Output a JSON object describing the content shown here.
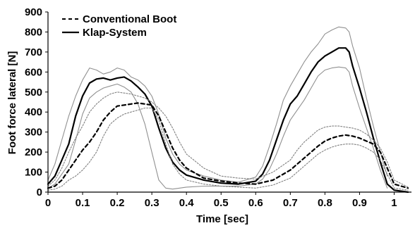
{
  "chart_data": {
    "type": "line",
    "xlabel": "Time [sec]",
    "ylabel": "Foot force lateral [N]",
    "xlim": [
      0,
      1.05
    ],
    "ylim": [
      0,
      900
    ],
    "xticks": [
      "0",
      "0.1",
      "0.2",
      "0.3",
      "0.4",
      "0.5",
      "0.6",
      "0.7",
      "0.8",
      "0.9",
      "1"
    ],
    "yticks": [
      "0",
      "100",
      "200",
      "300",
      "400",
      "500",
      "600",
      "700",
      "800",
      "900"
    ],
    "legend": {
      "position": "top-left",
      "entries": [
        "Conventional Boot",
        "Klap-System"
      ]
    },
    "series": [
      {
        "name": "Klap-System",
        "style": "solid-bold",
        "color": "#000000",
        "x": [
          0,
          0.02,
          0.04,
          0.06,
          0.08,
          0.1,
          0.12,
          0.14,
          0.16,
          0.18,
          0.2,
          0.22,
          0.24,
          0.26,
          0.28,
          0.3,
          0.32,
          0.34,
          0.36,
          0.38,
          0.4,
          0.45,
          0.5,
          0.55,
          0.6,
          0.62,
          0.64,
          0.66,
          0.68,
          0.7,
          0.72,
          0.74,
          0.76,
          0.78,
          0.8,
          0.82,
          0.84,
          0.86,
          0.87,
          0.88,
          0.9,
          0.92,
          0.94,
          0.96,
          0.98,
          1.0,
          1.04
        ],
        "y": [
          40,
          80,
          160,
          240,
          380,
          480,
          545,
          565,
          570,
          560,
          570,
          575,
          555,
          525,
          490,
          430,
          320,
          220,
          150,
          110,
          85,
          60,
          45,
          40,
          55,
          90,
          160,
          260,
          360,
          440,
          480,
          540,
          600,
          650,
          680,
          700,
          720,
          720,
          700,
          630,
          520,
          400,
          270,
          150,
          40,
          10,
          0
        ]
      },
      {
        "name": "",
        "style": "solid-thin-upper",
        "color": "#909090",
        "x": [
          0,
          0.02,
          0.04,
          0.06,
          0.08,
          0.1,
          0.12,
          0.14,
          0.16,
          0.18,
          0.2,
          0.22,
          0.24,
          0.26,
          0.28,
          0.3,
          0.32,
          0.34,
          0.36,
          0.38,
          0.4,
          0.45,
          0.5,
          0.55,
          0.6,
          0.62,
          0.64,
          0.66,
          0.68,
          0.7,
          0.72,
          0.74,
          0.76,
          0.78,
          0.8,
          0.82,
          0.84,
          0.86,
          0.87,
          0.88,
          0.9,
          0.92,
          0.94,
          0.96,
          0.98
        ],
        "y": [
          60,
          140,
          260,
          380,
          480,
          560,
          620,
          610,
          590,
          600,
          620,
          610,
          575,
          560,
          530,
          480,
          390,
          270,
          190,
          140,
          110,
          80,
          60,
          50,
          75,
          130,
          230,
          340,
          460,
          530,
          590,
          650,
          700,
          740,
          790,
          810,
          825,
          820,
          800,
          730,
          620,
          470,
          330,
          200,
          80
        ]
      },
      {
        "name": "",
        "style": "solid-thin-lower",
        "color": "#909090",
        "x": [
          0,
          0.02,
          0.04,
          0.06,
          0.08,
          0.1,
          0.12,
          0.14,
          0.16,
          0.18,
          0.2,
          0.22,
          0.24,
          0.26,
          0.28,
          0.3,
          0.32,
          0.34,
          0.36,
          0.38,
          0.4,
          0.45,
          0.5,
          0.55,
          0.6,
          0.62,
          0.64,
          0.66,
          0.68,
          0.7,
          0.72,
          0.74,
          0.76,
          0.78,
          0.8,
          0.82,
          0.84,
          0.86,
          0.87,
          0.88,
          0.9,
          0.92,
          0.94,
          0.96,
          0.98
        ],
        "y": [
          20,
          40,
          90,
          140,
          260,
          390,
          470,
          500,
          520,
          530,
          540,
          525,
          500,
          440,
          340,
          200,
          60,
          20,
          15,
          20,
          25,
          30,
          30,
          30,
          40,
          65,
          115,
          190,
          280,
          360,
          410,
          460,
          520,
          580,
          610,
          620,
          625,
          620,
          600,
          530,
          420,
          320,
          220,
          110,
          20
        ]
      },
      {
        "name": "Conventional Boot",
        "style": "dashed-bold",
        "color": "#000000",
        "x": [
          0,
          0.02,
          0.04,
          0.06,
          0.08,
          0.1,
          0.12,
          0.14,
          0.16,
          0.18,
          0.2,
          0.22,
          0.24,
          0.26,
          0.28,
          0.3,
          0.32,
          0.34,
          0.36,
          0.38,
          0.4,
          0.45,
          0.5,
          0.55,
          0.6,
          0.65,
          0.7,
          0.72,
          0.74,
          0.76,
          0.78,
          0.8,
          0.82,
          0.84,
          0.86,
          0.88,
          0.9,
          0.92,
          0.94,
          0.96,
          0.98,
          1.0,
          1.04
        ],
        "y": [
          20,
          30,
          60,
          110,
          160,
          210,
          250,
          300,
          360,
          400,
          430,
          435,
          440,
          445,
          440,
          435,
          380,
          300,
          220,
          160,
          120,
          70,
          55,
          45,
          40,
          60,
          110,
          140,
          170,
          200,
          230,
          255,
          270,
          280,
          285,
          280,
          270,
          255,
          240,
          200,
          120,
          40,
          20
        ]
      },
      {
        "name": "",
        "style": "dotted-upper",
        "color": "#808080",
        "x": [
          0,
          0.02,
          0.04,
          0.06,
          0.08,
          0.1,
          0.12,
          0.14,
          0.16,
          0.18,
          0.2,
          0.22,
          0.24,
          0.26,
          0.28,
          0.3,
          0.32,
          0.34,
          0.36,
          0.38,
          0.4,
          0.45,
          0.5,
          0.55,
          0.6,
          0.65,
          0.7,
          0.72,
          0.74,
          0.76,
          0.78,
          0.8,
          0.82,
          0.84,
          0.86,
          0.88,
          0.9,
          0.92,
          0.94,
          0.96,
          0.98,
          1.0,
          1.04
        ],
        "y": [
          30,
          60,
          120,
          200,
          270,
          330,
          400,
          440,
          470,
          490,
          500,
          495,
          490,
          480,
          470,
          450,
          420,
          380,
          320,
          250,
          190,
          120,
          80,
          70,
          65,
          100,
          160,
          210,
          250,
          280,
          310,
          325,
          330,
          330,
          325,
          320,
          310,
          290,
          260,
          220,
          150,
          60,
          25
        ]
      },
      {
        "name": "",
        "style": "dotted-lower",
        "color": "#808080",
        "x": [
          0,
          0.02,
          0.04,
          0.06,
          0.08,
          0.1,
          0.12,
          0.14,
          0.16,
          0.18,
          0.2,
          0.22,
          0.24,
          0.26,
          0.28,
          0.3,
          0.32,
          0.34,
          0.36,
          0.38,
          0.4,
          0.45,
          0.5,
          0.55,
          0.6,
          0.65,
          0.7,
          0.72,
          0.74,
          0.76,
          0.78,
          0.8,
          0.82,
          0.84,
          0.86,
          0.88,
          0.9,
          0.92,
          0.94,
          0.96,
          0.98,
          1.0,
          1.04
        ],
        "y": [
          10,
          15,
          30,
          60,
          80,
          110,
          150,
          200,
          280,
          340,
          370,
          390,
          400,
          410,
          420,
          420,
          360,
          240,
          140,
          90,
          60,
          40,
          30,
          25,
          20,
          35,
          70,
          100,
          130,
          160,
          190,
          210,
          225,
          235,
          240,
          240,
          235,
          220,
          200,
          160,
          90,
          20,
          10
        ]
      }
    ]
  }
}
